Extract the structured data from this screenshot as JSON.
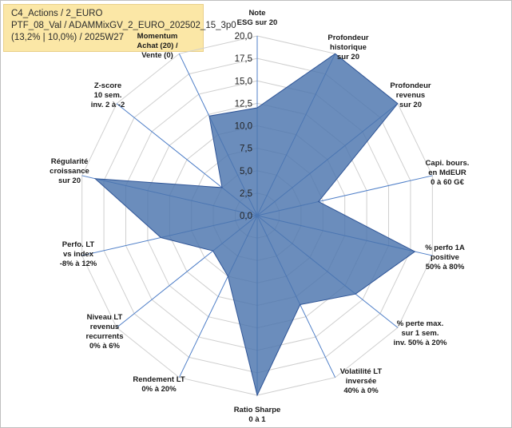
{
  "header": {
    "line1": "C4_Actions / 2_EURO",
    "line2": "PTF_08_Val / ADAMMixGV_2_EURO_202502_15_3p0",
    "line3": "(13,2% | 10,0%) / 2025W27"
  },
  "chart_data": {
    "type": "radar",
    "axes": [
      [
        "Note",
        "ESG sur 20"
      ],
      [
        "Profondeur",
        "historique",
        "sur 20"
      ],
      [
        "Profondeur",
        "revenus",
        "sur 20"
      ],
      [
        "Capi. bours.",
        "en MdEUR",
        "0 à 60 G€"
      ],
      [
        "% perfo 1A",
        "positive",
        "50% à 80%"
      ],
      [
        "% perte max.",
        "sur 1 sem.",
        "inv. 50% à 20%"
      ],
      [
        "Volatilité LT",
        "inversée",
        "40% à 0%"
      ],
      [
        "Ratio Sharpe",
        "0 à 1"
      ],
      [
        "Rendement LT",
        "0% à 20%"
      ],
      [
        "Niveau LT",
        "revenus",
        "recurrents",
        "0% à 6%"
      ],
      [
        "Perfo. LT",
        "vs index",
        "-8% à 12%"
      ],
      [
        "Régularité",
        "croissance",
        "sur 20"
      ],
      [
        "Z-score",
        "10 sem.",
        "inv. 2 à -2"
      ],
      [
        "Momentum",
        "Achat (20) /",
        "Vente (0)"
      ]
    ],
    "values": [
      12.0,
      20.0,
      20.0,
      7.0,
      18.0,
      14.0,
      11.0,
      20.0,
      7.5,
      6.3,
      11.0,
      18.5,
      5.0,
      12.3
    ],
    "rlim": [
      0,
      20
    ],
    "ticks": [
      "0,0",
      "2,5",
      "5,0",
      "7,5",
      "10,0",
      "12,5",
      "15,0",
      "17,5",
      "20,0"
    ],
    "fill_color": "#4a74ad",
    "line_color": "#2f5597",
    "grid": true
  }
}
